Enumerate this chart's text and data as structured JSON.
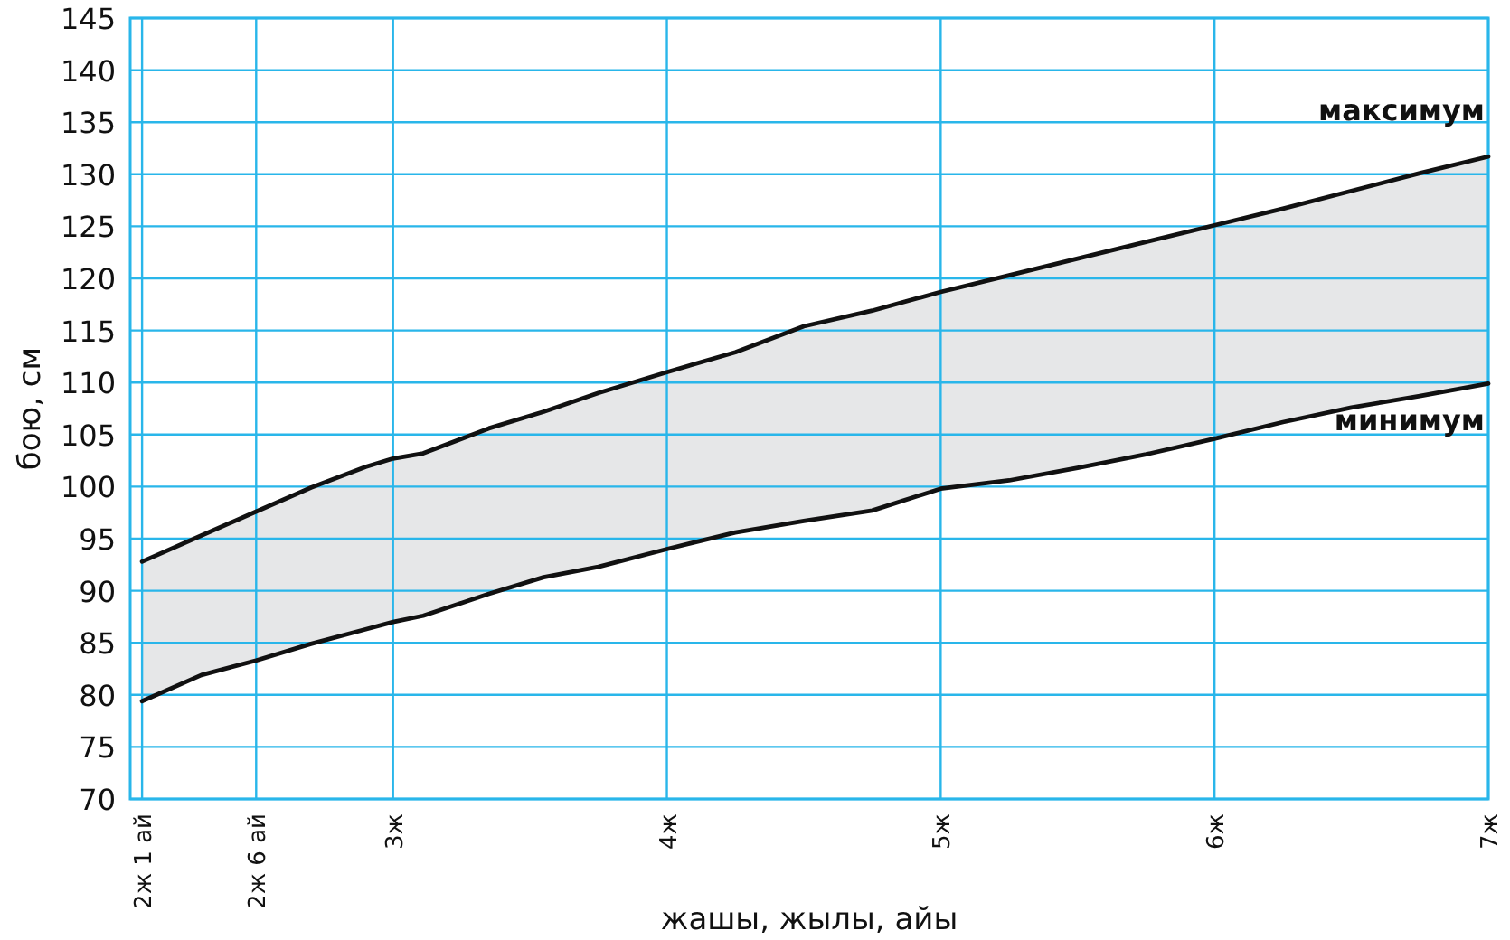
{
  "chart_data": {
    "type": "line",
    "xlabel": "жашы, жылы, айы",
    "ylabel": "бою, см",
    "x": [
      2.0833,
      2.3,
      2.5,
      2.7,
      2.9,
      3,
      3.11,
      3.35,
      3.55,
      3.75,
      4,
      4.25,
      4.5,
      4.75,
      5,
      5.25,
      5.5,
      5.75,
      6,
      6.25,
      6.5,
      6.75,
      7
    ],
    "xlim": [
      2.04,
      7
    ],
    "xticks": [
      {
        "value": 2.0833,
        "label": "2ж 1 ай"
      },
      {
        "value": 2.5,
        "label": "2ж 6 ай"
      },
      {
        "value": 3,
        "label": "3ж"
      },
      {
        "value": 4,
        "label": "4ж"
      },
      {
        "value": 5,
        "label": "5ж"
      },
      {
        "value": 6,
        "label": "6ж"
      },
      {
        "value": 7,
        "label": "7ж"
      }
    ],
    "ylim": [
      70,
      145
    ],
    "yticks": [
      70,
      75,
      80,
      85,
      90,
      95,
      100,
      105,
      110,
      115,
      120,
      125,
      130,
      135,
      140,
      145
    ],
    "grid": true,
    "line_style": "solid",
    "marker": "none",
    "series": [
      {
        "name": "максимум",
        "color": "#111111",
        "values": [
          92.8,
          95.3,
          97.6,
          99.9,
          101.9,
          102.7,
          103.2,
          105.6,
          107.2,
          109.0,
          111.0,
          112.9,
          115.4,
          116.9,
          118.7,
          120.3,
          121.9,
          123.5,
          125.1,
          126.7,
          128.4,
          130.1,
          131.7
        ],
        "lower": [
          79.4,
          81.9,
          83.3,
          84.9,
          86.3,
          87.0,
          87.6,
          89.7,
          91.3,
          92.3,
          94.0,
          95.6,
          96.7,
          97.7,
          99.8,
          100.6,
          101.8,
          103.1,
          104.6,
          106.2,
          107.6,
          108.7,
          109.9
        ],
        "upper": [
          92.8,
          95.3,
          97.6,
          99.9,
          101.9,
          102.7,
          103.2,
          105.6,
          107.2,
          109.0,
          111.0,
          112.9,
          115.4,
          116.9,
          118.7,
          120.3,
          121.9,
          123.5,
          125.1,
          126.7,
          128.4,
          130.1,
          131.7
        ]
      },
      {
        "name": "минимум",
        "color": "#111111",
        "values": [
          79.4,
          81.9,
          83.3,
          84.9,
          86.3,
          87.0,
          87.6,
          89.7,
          91.3,
          92.3,
          94.0,
          95.6,
          96.7,
          97.7,
          99.8,
          100.6,
          101.8,
          103.1,
          104.6,
          106.2,
          107.6,
          108.7,
          109.9
        ]
      }
    ]
  }
}
